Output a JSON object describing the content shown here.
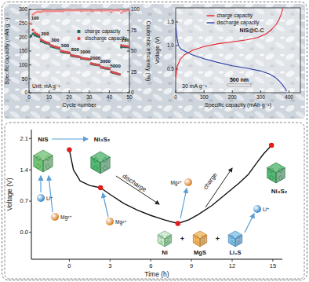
{
  "chart_data": [
    {
      "type": "scatter",
      "xlabel": "Cycle number",
      "ylabel": "Specific capacity (mAh g⁻¹)",
      "y2label": "Coulombic efficiency (%)",
      "xlim": [
        0,
        50
      ],
      "xticks": [
        0,
        10,
        20,
        30,
        40,
        50
      ],
      "ylim": [
        0,
        300
      ],
      "yticks": [
        0,
        50,
        100,
        150,
        200,
        250,
        300
      ],
      "y2lim": [
        0,
        100
      ],
      "y2ticks": [
        0,
        25,
        50,
        75,
        100
      ],
      "grid": false,
      "legend": "top-right",
      "annotations": {
        "rates": [
          "100",
          "200",
          "300",
          "500",
          "800",
          "1000",
          "2000",
          "3000",
          "5000",
          "200"
        ],
        "unit": "Unit: mA g⁻¹"
      },
      "series": [
        {
          "name": "charge capacity",
          "color": "#1e6b5c",
          "marker": "square",
          "x": [
            1,
            2,
            3,
            4,
            5,
            6,
            7,
            8,
            9,
            10,
            11,
            12,
            13,
            14,
            15,
            16,
            17,
            18,
            19,
            20,
            21,
            22,
            23,
            24,
            25,
            26,
            27,
            28,
            29,
            30,
            31,
            32,
            33,
            34,
            35,
            36,
            37,
            38,
            39,
            40,
            41,
            42,
            43,
            44,
            45,
            46,
            47,
            48,
            49,
            50
          ],
          "values": [
            205,
            212,
            207,
            204,
            201,
            186,
            183,
            180,
            178,
            176,
            167,
            165,
            163,
            161,
            159,
            148,
            146,
            145,
            144,
            143,
            134,
            132,
            131,
            130,
            129,
            124,
            123,
            122,
            121,
            120,
            104,
            102,
            101,
            100,
            99,
            91,
            90,
            88,
            87,
            86,
            74,
            72,
            70,
            68,
            66,
            164,
            166,
            165,
            165,
            164
          ]
        },
        {
          "name": "discharge capacity",
          "color": "#e0474c",
          "marker": "circle",
          "x": [
            1,
            2,
            3,
            4,
            5,
            6,
            7,
            8,
            9,
            10,
            11,
            12,
            13,
            14,
            15,
            16,
            17,
            18,
            19,
            20,
            21,
            22,
            23,
            24,
            25,
            26,
            27,
            28,
            29,
            30,
            31,
            32,
            33,
            34,
            35,
            36,
            37,
            38,
            39,
            40,
            41,
            42,
            43,
            44,
            45,
            46,
            47,
            48,
            49,
            50
          ],
          "values": [
            248,
            226,
            216,
            211,
            207,
            192,
            187,
            184,
            181,
            179,
            171,
            168,
            166,
            164,
            162,
            151,
            149,
            147,
            146,
            145,
            136,
            134,
            132,
            131,
            130,
            126,
            124,
            123,
            122,
            121,
            106,
            104,
            102,
            101,
            100,
            93,
            91,
            89,
            88,
            87,
            76,
            73,
            71,
            69,
            67,
            171,
            169,
            168,
            167,
            166
          ]
        },
        {
          "color": "#f28a8a",
          "marker": "circle",
          "axis": "y2",
          "x": [
            1,
            2,
            3,
            4,
            5,
            6,
            7,
            8,
            9,
            10,
            11,
            12,
            13,
            14,
            15,
            16,
            17,
            18,
            19,
            20,
            21,
            22,
            23,
            24,
            25,
            26,
            27,
            28,
            29,
            30,
            31,
            32,
            33,
            34,
            35,
            36,
            37,
            38,
            39,
            40,
            41,
            42,
            43,
            44,
            45,
            46,
            47,
            48,
            49,
            50
          ],
          "values": [
            83,
            94,
            96,
            97,
            97,
            97,
            98,
            98,
            98,
            98,
            98,
            98,
            98,
            98,
            98,
            98,
            98,
            99,
            99,
            99,
            99,
            99,
            99,
            99,
            99,
            98,
            99,
            99,
            99,
            99,
            98,
            98,
            99,
            99,
            99,
            98,
            99,
            99,
            99,
            99,
            97,
            99,
            99,
            99,
            99,
            96,
            98,
            98,
            99,
            99
          ]
        }
      ]
    },
    {
      "type": "line",
      "xlabel": "Specific capacity (mAh g⁻¹)",
      "ylabel": "Voltage (V)",
      "xlim": [
        0,
        440
      ],
      "xticks": [
        0,
        100,
        200,
        300,
        400
      ],
      "ylim": [
        0,
        1.8
      ],
      "yticks": [
        0.5,
        {
          "value": 1,
          "label": "1.0"
        },
        1.5
      ],
      "grid": false,
      "legend": "top",
      "annotations": [
        "NiS@C-C",
        "30 mA g⁻¹",
        "500 nm"
      ],
      "series": [
        {
          "name": "charge capacity",
          "color": "#e8232b",
          "x": [
            0,
            5,
            15,
            30,
            60,
            100,
            150,
            200,
            250,
            290,
            320,
            340,
            355,
            365,
            372,
            378
          ],
          "values": [
            0.3,
            0.55,
            0.7,
            0.8,
            0.9,
            0.98,
            1.04,
            1.08,
            1.12,
            1.17,
            1.25,
            1.35,
            1.45,
            1.56,
            1.66,
            1.78
          ]
        },
        {
          "name": "discharge capacity",
          "color": "#2b3fa6",
          "x": [
            0,
            5,
            10,
            20,
            40,
            60,
            100,
            150,
            200,
            250,
            300,
            330,
            350,
            365,
            375,
            385,
            392
          ],
          "values": [
            1.45,
            1.15,
            1.0,
            0.92,
            0.86,
            0.8,
            0.72,
            0.64,
            0.57,
            0.52,
            0.46,
            0.4,
            0.33,
            0.25,
            0.18,
            0.1,
            0.03
          ]
        }
      ]
    },
    {
      "type": "line",
      "xlabel": "Time (h)",
      "ylabel": "Voltage (V)",
      "xlim": [
        -2.8,
        15.7
      ],
      "xticks": [
        0,
        3,
        6,
        9,
        12,
        15
      ],
      "ylim": [
        -0.6,
        2.3
      ],
      "yticks": [
        {
          "value": 0,
          "label": "0.0"
        },
        0.7,
        1.4,
        2.1
      ],
      "grid": false,
      "annotations": [
        "NiS",
        "Ni₃S₂",
        "discharge",
        "charge",
        "Ni",
        "MgS",
        "Li₂S",
        "Ni₃S₂",
        "Li⁺",
        "Mg²⁺",
        "Mg²⁺",
        "Mg²⁺",
        "Li⁺",
        "+",
        "+"
      ],
      "series": [
        {
          "color": "#111111",
          "x": [
            0,
            0.3,
            0.8,
            1.5,
            2.3,
            3,
            4,
            5,
            6,
            7,
            8,
            8.8,
            9.5,
            10.5,
            11.5,
            12.5,
            13.2,
            13.8,
            14.3,
            14.9
          ],
          "values": [
            1.85,
            1.4,
            1.15,
            1.05,
            1.0,
            0.85,
            0.65,
            0.5,
            0.38,
            0.28,
            0.2,
            0.28,
            0.4,
            0.6,
            0.85,
            1.1,
            1.3,
            1.55,
            1.75,
            1.95
          ]
        },
        {
          "type": "scatter",
          "color": "#e01c1c",
          "marker": "circle",
          "x": [
            0,
            2.3,
            8,
            14.9
          ],
          "values": [
            1.85,
            1.0,
            0.2,
            1.95
          ]
        }
      ]
    }
  ]
}
